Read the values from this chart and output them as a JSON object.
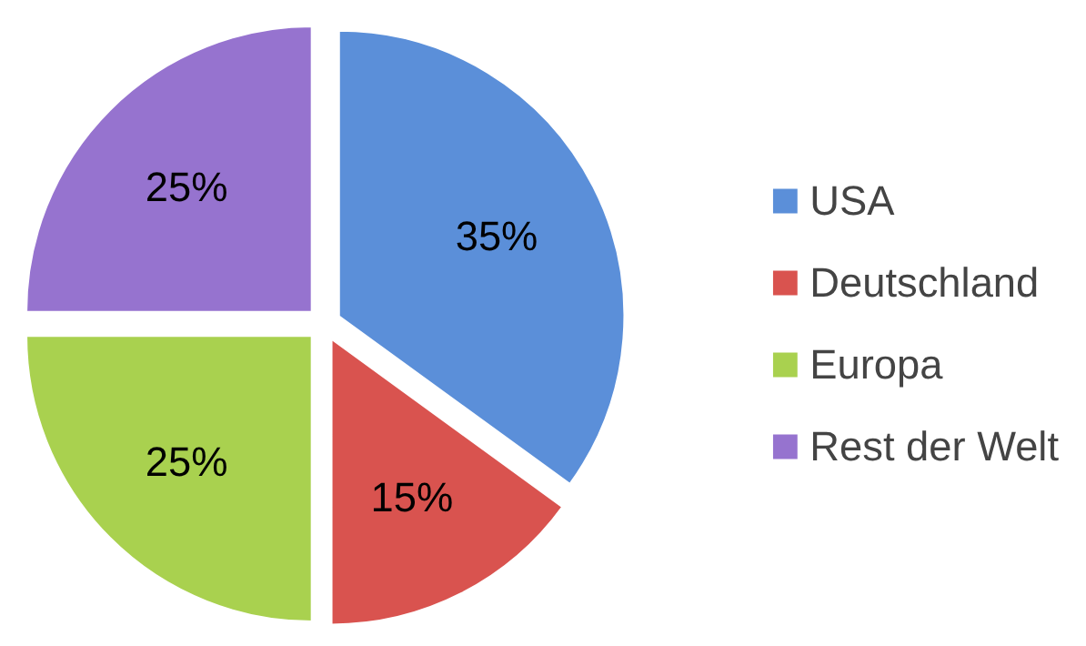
{
  "chart_data": {
    "type": "pie",
    "categories": [
      "USA",
      "Deutschland",
      "Europa",
      "Rest der Welt"
    ],
    "values": [
      35,
      15,
      25,
      25
    ],
    "colors": [
      "#5b8fd9",
      "#d9534f",
      "#a9d14f",
      "#9673cf"
    ],
    "value_labels": [
      "35%",
      "15%",
      "25%",
      "25%"
    ],
    "legend": "right"
  }
}
